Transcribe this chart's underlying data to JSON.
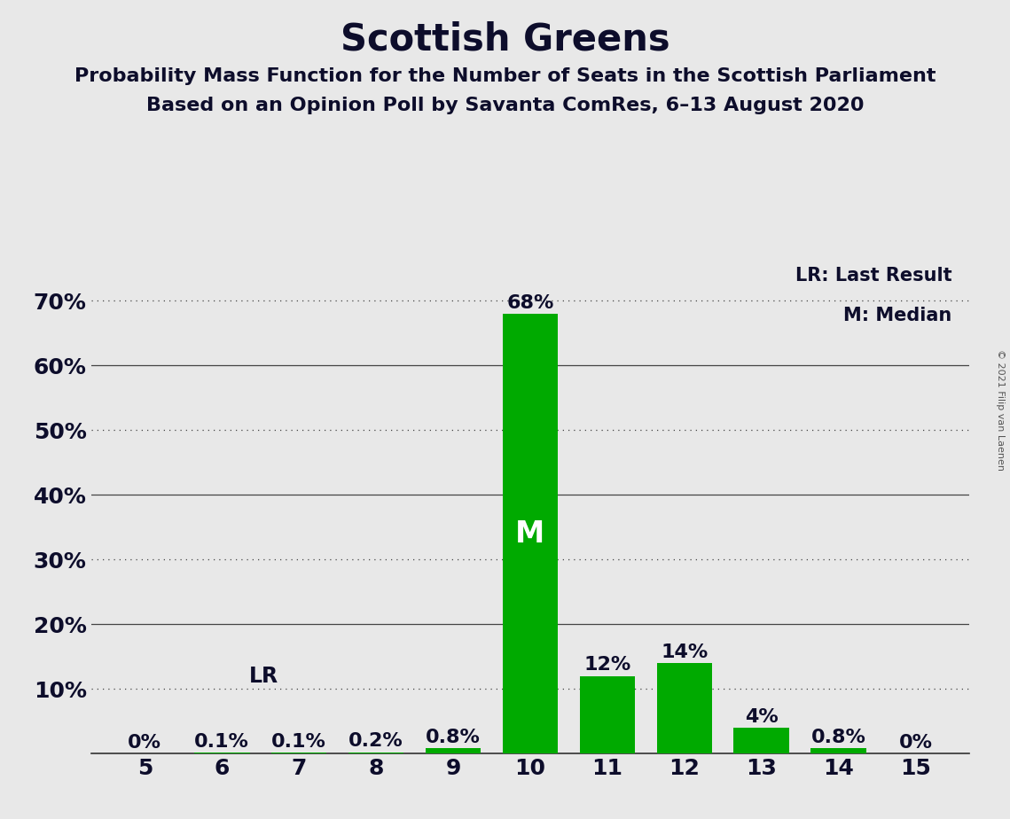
{
  "title": "Scottish Greens",
  "subtitle1": "Probability Mass Function for the Number of Seats in the Scottish Parliament",
  "subtitle2": "Based on an Opinion Poll by Savanta ComRes, 6–13 August 2020",
  "copyright": "© 2021 Filip van Laenen",
  "seats": [
    5,
    6,
    7,
    8,
    9,
    10,
    11,
    12,
    13,
    14,
    15
  ],
  "probabilities": [
    0.0,
    0.001,
    0.001,
    0.002,
    0.008,
    0.68,
    0.12,
    0.14,
    0.04,
    0.008,
    0.0
  ],
  "bar_labels": [
    "0%",
    "0.1%",
    "0.1%",
    "0.2%",
    "0.8%",
    "68%",
    "12%",
    "14%",
    "4%",
    "0.8%",
    "0%"
  ],
  "bar_color": "#00AA00",
  "median_seat": 10,
  "last_result_seat": 6,
  "median_label": "M",
  "lr_label": "LR",
  "legend_lr": "LR: Last Result",
  "legend_m": "M: Median",
  "solid_yticks": [
    0.0,
    0.2,
    0.4,
    0.6
  ],
  "dotted_yticks": [
    0.1,
    0.3,
    0.5,
    0.7
  ],
  "ytick_positions": [
    0.0,
    0.1,
    0.2,
    0.3,
    0.4,
    0.5,
    0.6,
    0.7
  ],
  "ytick_labels": [
    "",
    "10%",
    "20%",
    "30%",
    "40%",
    "50%",
    "60%",
    "70%"
  ],
  "background_color": "#E8E8E8",
  "title_color": "#0D0D2B",
  "bar_label_color": "#0D0D2B",
  "label_in_bar_color": "#FFFFFF",
  "title_fontsize": 30,
  "subtitle_fontsize": 16,
  "tick_fontsize": 18,
  "bar_label_fontsize": 16,
  "legend_fontsize": 15,
  "copyright_fontsize": 8
}
